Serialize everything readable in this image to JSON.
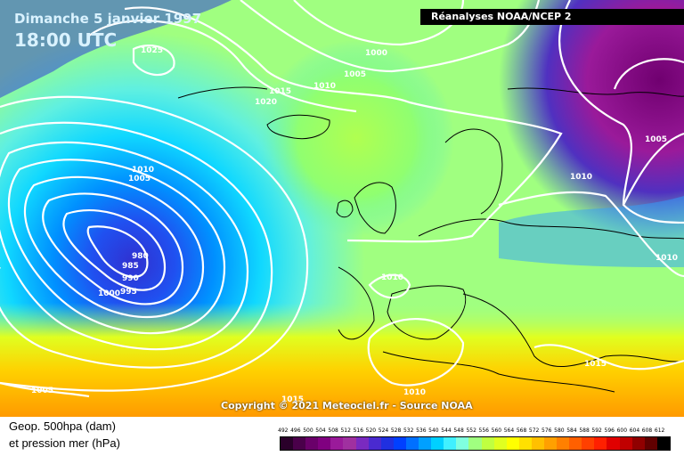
{
  "header": {
    "date": "Dimanche 5 janvier 1997",
    "time": "18:00 UTC",
    "source": "Réanalyses NOAA/NCEP 2"
  },
  "map": {
    "copyright": "Copyright © 2021 Meteociel.fr - Source NOAA",
    "isobar_labels": [
      {
        "text": "1025"
      },
      {
        "text": "1000"
      },
      {
        "text": "1005"
      },
      {
        "text": "1010"
      },
      {
        "text": "1015"
      },
      {
        "text": "1020"
      },
      {
        "text": "1010"
      },
      {
        "text": "1005"
      },
      {
        "text": "980"
      },
      {
        "text": "985"
      },
      {
        "text": "990"
      },
      {
        "text": "995"
      },
      {
        "text": "1000"
      },
      {
        "text": "1010"
      },
      {
        "text": "1010"
      },
      {
        "text": "1005"
      },
      {
        "text": "1010"
      },
      {
        "text": "1005"
      },
      {
        "text": "1015"
      },
      {
        "text": "1015"
      },
      {
        "text": "1010"
      }
    ]
  },
  "legend": {
    "line1": "Geop. 500hpa (dam)",
    "line2": "et pression mer (hPa)",
    "scale_values": [
      "492",
      "496",
      "500",
      "504",
      "508",
      "512",
      "516",
      "520",
      "524",
      "528",
      "532",
      "536",
      "540",
      "544",
      "548",
      "552",
      "556",
      "560",
      "564",
      "568",
      "572",
      "576",
      "580",
      "584",
      "588",
      "592",
      "596",
      "600",
      "604",
      "608",
      "612"
    ],
    "scale_colors": [
      "#2a002a",
      "#4a004a",
      "#6a006a",
      "#800080",
      "#9a1a9a",
      "#a030a0",
      "#7a2ac0",
      "#4a2ad0",
      "#2030e0",
      "#0040ff",
      "#0070ff",
      "#00a0ff",
      "#00d0ff",
      "#40f0ff",
      "#80ffe0",
      "#a0ff80",
      "#c0ff40",
      "#e0ff20",
      "#ffff00",
      "#ffe000",
      "#ffc000",
      "#ffa000",
      "#ff8000",
      "#ff6000",
      "#ff4000",
      "#ff2000",
      "#e00000",
      "#c00000",
      "#900000",
      "#600000",
      "#000000"
    ]
  }
}
